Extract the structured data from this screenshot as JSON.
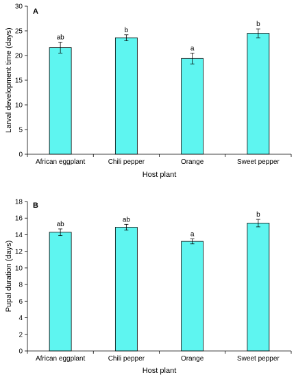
{
  "chart_data": [
    {
      "type": "bar",
      "panel_label": "A",
      "title": "",
      "categories": [
        "African eggplant",
        "Chili pepper",
        "Orange",
        "Sweet pepper"
      ],
      "values": [
        21.6,
        23.6,
        19.4,
        24.5
      ],
      "errors": [
        1.1,
        0.6,
        1.1,
        0.9
      ],
      "significance": [
        "ab",
        "b",
        "a",
        "b"
      ],
      "xlabel": "Host plant",
      "ylabel": "Larval development time (days)",
      "ylim": [
        0,
        30
      ],
      "yticks": [
        0,
        5,
        10,
        15,
        20,
        25,
        30
      ],
      "bar_color": "#5ef5f0",
      "grid": false
    },
    {
      "type": "bar",
      "panel_label": "B",
      "title": "",
      "categories": [
        "African eggplant",
        "Chili pepper",
        "Orange",
        "Sweet pepper"
      ],
      "values": [
        14.3,
        14.9,
        13.2,
        15.4
      ],
      "errors": [
        0.4,
        0.35,
        0.3,
        0.45
      ],
      "significance": [
        "ab",
        "ab",
        "a",
        "b"
      ],
      "xlabel": "Host plant",
      "ylabel": "Pupal duration (days)",
      "ylim": [
        0,
        18
      ],
      "yticks": [
        0,
        2,
        4,
        6,
        8,
        10,
        12,
        14,
        16,
        18
      ],
      "bar_color": "#5ef5f0",
      "grid": false
    }
  ]
}
